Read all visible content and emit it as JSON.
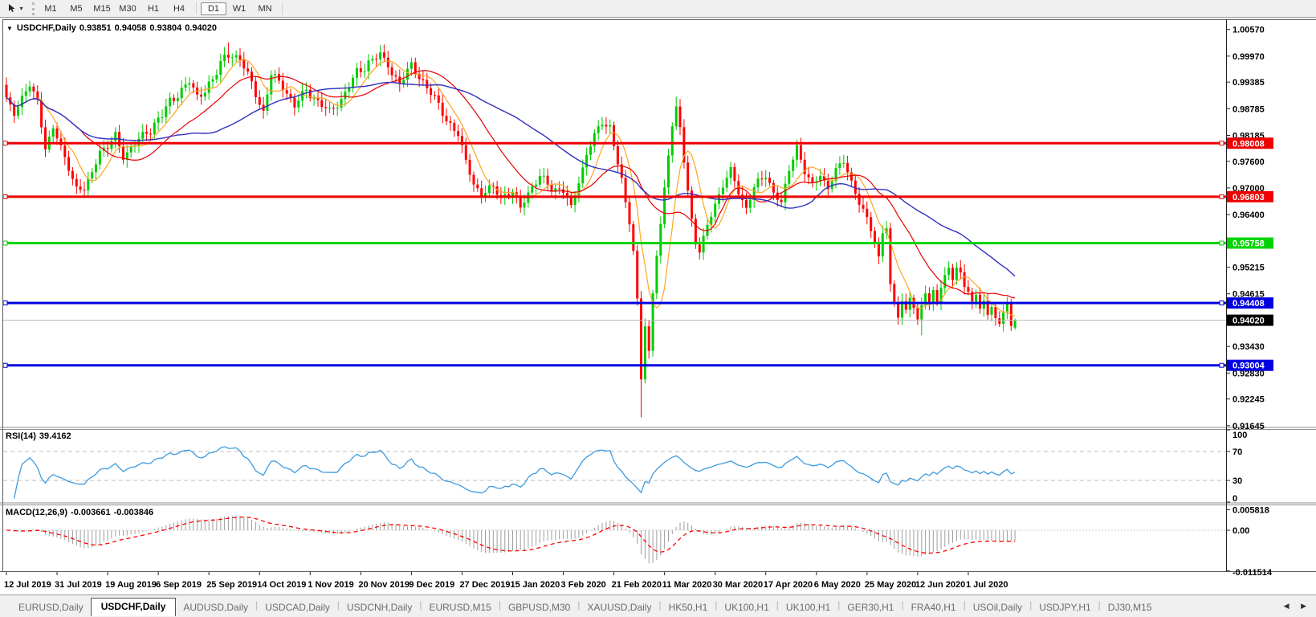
{
  "toolbar": {
    "cursor_icon": "chart-cursor-icon",
    "timeframes": [
      "M1",
      "M5",
      "M15",
      "M30",
      "H1",
      "H4",
      "D1",
      "W1",
      "MN"
    ],
    "active_timeframe": "D1",
    "group_dividers_before": [
      "D1"
    ],
    "group_dividers_after": [
      "MN"
    ]
  },
  "chart": {
    "title": {
      "symbol_period": "USDCHF,Daily",
      "open": "0.93851",
      "high": "0.94058",
      "low": "0.93804",
      "close": "0.94020"
    },
    "price_axis": {
      "ticks": [
        "1.00570",
        "0.99970",
        "0.99385",
        "0.98785",
        "0.98185",
        "0.97600",
        "0.97000",
        "0.96400",
        "0.95215",
        "0.94615",
        "0.93430",
        "0.92830",
        "0.92245",
        "0.91645"
      ]
    },
    "badges": [
      {
        "label": "0.98008",
        "price": 0.98008,
        "bg": "#ee0000"
      },
      {
        "label": "0.96803",
        "price": 0.96803,
        "bg": "#ee0000"
      },
      {
        "label": "0.95758",
        "price": 0.95758,
        "bg": "#00d400"
      },
      {
        "label": "0.94408",
        "price": 0.94408,
        "bg": "#0000e0"
      },
      {
        "label": "0.94020",
        "price": 0.9402,
        "bg": "#000000"
      },
      {
        "label": "0.93004",
        "price": 0.93004,
        "bg": "#0000e0"
      }
    ],
    "hlines": [
      {
        "price": 0.98008,
        "color": "#ee0000",
        "thickness": 3
      },
      {
        "price": 0.96803,
        "color": "#ee0000",
        "thickness": 3
      },
      {
        "price": 0.95758,
        "color": "#00d400",
        "thickness": 3
      },
      {
        "price": 0.94408,
        "color": "#0000e0",
        "thickness": 3
      },
      {
        "price": 0.93004,
        "color": "#0000e0",
        "thickness": 3
      }
    ],
    "current_price": {
      "label": "0.94020",
      "value": 0.9402,
      "line_color": "#b8b8b8",
      "badge_bg": "#000000"
    },
    "time_axis": {
      "labels": [
        {
          "text": "12 Jul 2019",
          "i": 0
        },
        {
          "text": "31 Jul 2019",
          "i": 13
        },
        {
          "text": "19 Aug 2019",
          "i": 26
        },
        {
          "text": "6 Sep 2019",
          "i": 39
        },
        {
          "text": "25 Sep 2019",
          "i": 52
        },
        {
          "text": "14 Oct 2019",
          "i": 65
        },
        {
          "text": "1 Nov 2019",
          "i": 78
        },
        {
          "text": "20 Nov 2019",
          "i": 91
        },
        {
          "text": "9 Dec 2019",
          "i": 104
        },
        {
          "text": "27 Dec 2019",
          "i": 117
        },
        {
          "text": "15 Jan 2020",
          "i": 130
        },
        {
          "text": "3 Feb 2020",
          "i": 143
        },
        {
          "text": "21 Feb 2020",
          "i": 156
        },
        {
          "text": "11 Mar 2020",
          "i": 169
        },
        {
          "text": "30 Mar 2020",
          "i": 182
        },
        {
          "text": "17 Apr 2020",
          "i": 195
        },
        {
          "text": "6 May 2020",
          "i": 208
        },
        {
          "text": "25 May 2020",
          "i": 221
        },
        {
          "text": "12 Jun 2020",
          "i": 234
        },
        {
          "text": "1 Jul 2020",
          "i": 247
        }
      ]
    }
  },
  "rsi": {
    "name": "RSI(14)",
    "value": "39.4162",
    "line_color": "#3e9bdf",
    "axis": [
      "100",
      "70",
      "30",
      "0"
    ],
    "levels": [
      70,
      30
    ]
  },
  "macd": {
    "name": "MACD(12,26,9)",
    "value_main": "-0.003661",
    "value_signal": "-0.003846",
    "axis": [
      {
        "label": "0.005818",
        "v": 0.005818
      },
      {
        "label": "0.00",
        "v": 0
      },
      {
        "label": "-0.011514",
        "v": -0.011514
      }
    ],
    "hist_color": "#9e9e9e",
    "signal_color": "#ff0000"
  },
  "chart_data": {
    "type": "candlestick",
    "symbol": "USDCHF",
    "period": "Daily",
    "n_candles": 260,
    "up_color": "#00cc00",
    "down_color": "#ff0000",
    "close_waypoints": [
      [
        0,
        0.99
      ],
      [
        2,
        0.9868
      ],
      [
        4,
        0.9905
      ],
      [
        6,
        0.993
      ],
      [
        8,
        0.9895
      ],
      [
        10,
        0.979
      ],
      [
        12,
        0.9835
      ],
      [
        14,
        0.979
      ],
      [
        16,
        0.9745
      ],
      [
        18,
        0.97
      ],
      [
        20,
        0.9695
      ],
      [
        22,
        0.9735
      ],
      [
        24,
        0.9785
      ],
      [
        26,
        0.979
      ],
      [
        28,
        0.982
      ],
      [
        30,
        0.977
      ],
      [
        33,
        0.98
      ],
      [
        36,
        0.9825
      ],
      [
        40,
        0.9865
      ],
      [
        44,
        0.9915
      ],
      [
        47,
        0.994
      ],
      [
        49,
        0.9905
      ],
      [
        53,
        0.9945
      ],
      [
        57,
        1.0005
      ],
      [
        60,
        0.999
      ],
      [
        63,
        0.9935
      ],
      [
        66,
        0.987
      ],
      [
        68,
        0.9955
      ],
      [
        71,
        0.993
      ],
      [
        74,
        0.9885
      ],
      [
        77,
        0.992
      ],
      [
        80,
        0.9895
      ],
      [
        83,
        0.987
      ],
      [
        86,
        0.99
      ],
      [
        89,
        0.9945
      ],
      [
        93,
        0.9985
      ],
      [
        96,
        1.0
      ],
      [
        98,
        0.9975
      ],
      [
        101,
        0.9935
      ],
      [
        104,
        0.9975
      ],
      [
        107,
        0.994
      ],
      [
        110,
        0.99
      ],
      [
        113,
        0.9855
      ],
      [
        116,
        0.982
      ],
      [
        118,
        0.976
      ],
      [
        120,
        0.971
      ],
      [
        122,
        0.9685
      ],
      [
        125,
        0.97
      ],
      [
        127,
        0.968
      ],
      [
        130,
        0.969
      ],
      [
        132,
        0.9655
      ],
      [
        134,
        0.969
      ],
      [
        137,
        0.9725
      ],
      [
        140,
        0.97
      ],
      [
        143,
        0.9695
      ],
      [
        145,
        0.9655
      ],
      [
        147,
        0.9715
      ],
      [
        149,
        0.9775
      ],
      [
        151,
        0.982
      ],
      [
        153,
        0.9845
      ],
      [
        155,
        0.984
      ],
      [
        156,
        0.9795
      ],
      [
        157,
        0.9755
      ],
      [
        158,
        0.972
      ],
      [
        159,
        0.9665
      ],
      [
        160,
        0.962
      ],
      [
        161,
        0.956
      ],
      [
        162,
        0.945
      ],
      [
        163,
        0.927
      ],
      [
        164,
        0.939
      ],
      [
        165,
        0.933
      ],
      [
        166,
        0.946
      ],
      [
        167,
        0.955
      ],
      [
        168,
        0.962
      ],
      [
        169,
        0.97
      ],
      [
        170,
        0.9775
      ],
      [
        171,
        0.984
      ],
      [
        172,
        0.988
      ],
      [
        173,
        0.9835
      ],
      [
        174,
        0.976
      ],
      [
        175,
        0.9695
      ],
      [
        176,
        0.963
      ],
      [
        177,
        0.9575
      ],
      [
        178,
        0.9555
      ],
      [
        180,
        0.9615
      ],
      [
        182,
        0.9665
      ],
      [
        184,
        0.9705
      ],
      [
        186,
        0.974
      ],
      [
        188,
        0.969
      ],
      [
        190,
        0.9655
      ],
      [
        192,
        0.97
      ],
      [
        195,
        0.973
      ],
      [
        197,
        0.969
      ],
      [
        199,
        0.9665
      ],
      [
        201,
        0.974
      ],
      [
        203,
        0.9795
      ],
      [
        205,
        0.9735
      ],
      [
        207,
        0.9705
      ],
      [
        209,
        0.973
      ],
      [
        211,
        0.97
      ],
      [
        213,
        0.974
      ],
      [
        215,
        0.976
      ],
      [
        217,
        0.9715
      ],
      [
        219,
        0.9665
      ],
      [
        221,
        0.963
      ],
      [
        222,
        0.9605
      ],
      [
        223,
        0.9575
      ],
      [
        224,
        0.9545
      ],
      [
        225,
        0.96
      ],
      [
        226,
        0.961
      ],
      [
        227,
        0.948
      ],
      [
        228,
        0.944
      ],
      [
        229,
        0.941
      ],
      [
        230,
        0.9445
      ],
      [
        231,
        0.9425
      ],
      [
        232,
        0.9455
      ],
      [
        233,
        0.943
      ],
      [
        234,
        0.94
      ],
      [
        235,
        0.9435
      ],
      [
        236,
        0.9465
      ],
      [
        237,
        0.944
      ],
      [
        238,
        0.947
      ],
      [
        239,
        0.9445
      ],
      [
        240,
        0.9475
      ],
      [
        241,
        0.95
      ],
      [
        242,
        0.952
      ],
      [
        243,
        0.9495
      ],
      [
        244,
        0.952
      ],
      [
        245,
        0.951
      ],
      [
        246,
        0.948
      ],
      [
        247,
        0.9465
      ],
      [
        248,
        0.944
      ],
      [
        249,
        0.946
      ],
      [
        250,
        0.943
      ],
      [
        251,
        0.9445
      ],
      [
        252,
        0.9415
      ],
      [
        253,
        0.9435
      ],
      [
        254,
        0.9405
      ],
      [
        255,
        0.939
      ],
      [
        256,
        0.942
      ],
      [
        257,
        0.944
      ],
      [
        258,
        0.9388
      ],
      [
        259,
        0.9402
      ]
    ],
    "wick_overrides": {
      "57": {
        "high": 1.0028
      },
      "163": {
        "low": 0.9183
      },
      "172": {
        "high": 0.9906
      },
      "235": {
        "low": 0.9368
      }
    },
    "last_candle": {
      "open": 0.93851,
      "high": 0.94058,
      "low": 0.93804,
      "close": 0.9402
    },
    "moving_averages": [
      {
        "name": "ma-fast",
        "period": 7,
        "color": "#ffa520",
        "width": 1.2
      },
      {
        "name": "ma-mid",
        "period": 20,
        "color": "#e80000",
        "width": 1.2
      },
      {
        "name": "ma-slow",
        "period": 45,
        "color": "#3030c0",
        "width": 1.4
      }
    ],
    "indicators": {
      "rsi_period": 14,
      "macd": {
        "fast": 12,
        "slow": 26,
        "signal": 9
      }
    }
  },
  "tabs": {
    "items": [
      "EURUSD,Daily",
      "USDCHF,Daily",
      "AUDUSD,Daily",
      "USDCAD,Daily",
      "USDCNH,Daily",
      "EURUSD,M15",
      "GBPUSD,M30",
      "XAUUSD,Daily",
      "HK50,H1",
      "UK100,H1",
      "UK100,H1",
      "GER30,H1",
      "FRA40,H1",
      "USOil,Daily",
      "USDJPY,H1",
      "DJ30,M15"
    ],
    "active_index": 1,
    "scroll_left_icon": "◀",
    "scroll_right_icon": "▶"
  }
}
